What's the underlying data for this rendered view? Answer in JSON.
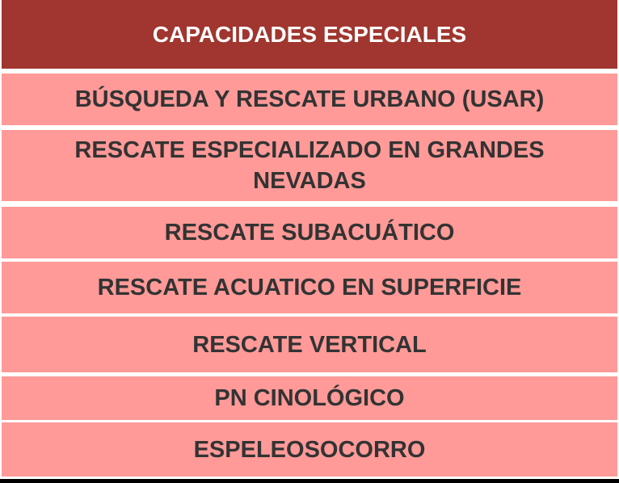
{
  "table": {
    "header": "CAPACIDADES  ESPECIALES",
    "rows": [
      "BÚSQUEDA  Y RESCATE URBANO  (USAR)",
      "RESCATE ESPECIALIZADO  EN GRANDES NEVADAS",
      "RESCATE SUBACUÁTICO",
      "RESCATE ACUATICO  EN SUPERFICIE",
      "RESCATE VERTICAL",
      "PN CINOLÓGICO",
      "ESPELEOSOCORRO"
    ]
  },
  "colors": {
    "header_bg": "#a0362f",
    "row_bg": "#ff9a98",
    "text": "#333333"
  }
}
